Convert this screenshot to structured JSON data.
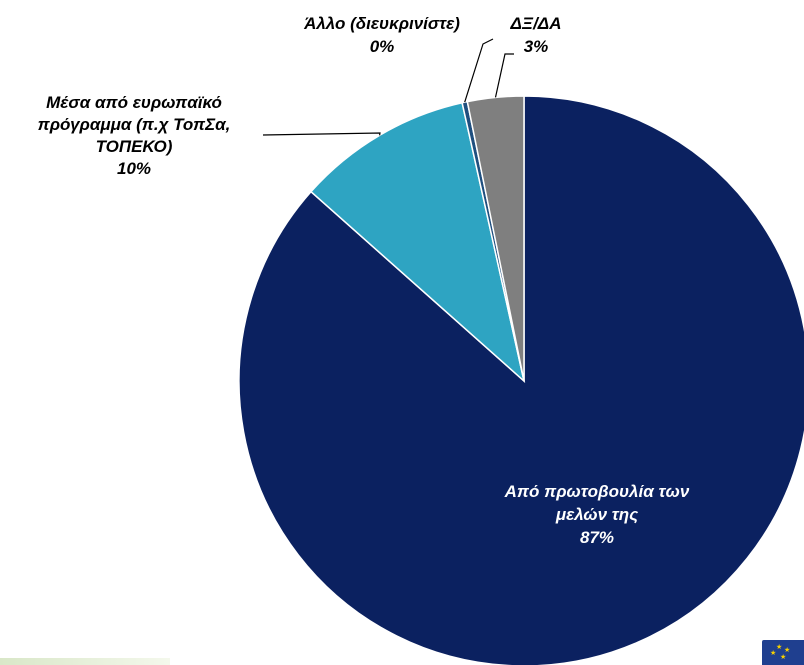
{
  "chart_data": {
    "type": "pie",
    "start_angle_deg": 0,
    "direction": "clockwise",
    "slices": [
      {
        "label_lines": [
          "Από πρωτοβουλία των",
          "μελών της"
        ],
        "pct_label": "87%",
        "value": 87,
        "color": "#0b2160",
        "label_style": "inside"
      },
      {
        "label_lines": [
          "Μέσα από ευρωπαϊκό",
          "πρόγραμμα (π.χ ΤοπΣα,",
          "ΤΟΠΕΚΟ)"
        ],
        "pct_label": "10%",
        "value": 10,
        "color": "#2ea4c2",
        "label_style": "outside"
      },
      {
        "label_lines": [
          "Άλλο (διευκρινίστε)"
        ],
        "pct_label": "0%",
        "value": 0.3,
        "color": "#1f4f7f",
        "label_style": "outside"
      },
      {
        "label_lines": [
          "ΔΞ/ΔΑ"
        ],
        "pct_label": "3%",
        "value": 3.2,
        "color": "#7f7f7f",
        "label_style": "outside"
      }
    ]
  },
  "decor": {
    "footer_strip_color": "#d9e7c8",
    "badge_color": "#1f3f8f",
    "badge_star_color": "#f7d000",
    "badge_icon": "eu-flag-icon"
  }
}
